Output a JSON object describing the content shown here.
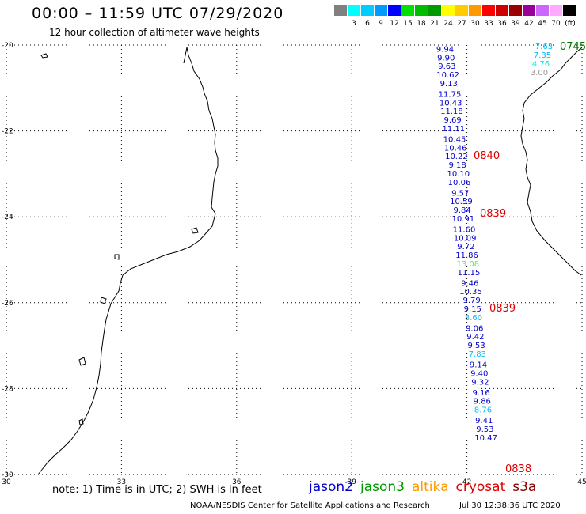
{
  "header": {
    "title": "00:00 – 11:59 UTC 07/29/2020",
    "subtitle": "12 hour collection of altimeter wave heights"
  },
  "color_scale": {
    "unit": "(ft)",
    "swatches": [
      {
        "color": "#808080",
        "label": ""
      },
      {
        "color": "#00ffff",
        "label": "3"
      },
      {
        "color": "#00ccff",
        "label": "6"
      },
      {
        "color": "#0099ff",
        "label": "9"
      },
      {
        "color": "#0000ff",
        "label": "12"
      },
      {
        "color": "#00e000",
        "label": "15"
      },
      {
        "color": "#00bb00",
        "label": "18"
      },
      {
        "color": "#009900",
        "label": "21"
      },
      {
        "color": "#ffff00",
        "label": "24"
      },
      {
        "color": "#ffcc00",
        "label": "27"
      },
      {
        "color": "#ff9900",
        "label": "30"
      },
      {
        "color": "#ff0000",
        "label": "33"
      },
      {
        "color": "#cc0000",
        "label": "36"
      },
      {
        "color": "#990000",
        "label": "39"
      },
      {
        "color": "#990099",
        "label": "42"
      },
      {
        "color": "#cc66ff",
        "label": "45"
      },
      {
        "color": "#ffaaff",
        "label": "70"
      },
      {
        "color": "#000000",
        "label": ""
      }
    ]
  },
  "axes": {
    "x_ticks": [
      "30",
      "33",
      "36",
      "39",
      "42",
      "45"
    ],
    "y_ticks": [
      "-20",
      "-22",
      "-24",
      "-26",
      "-28",
      "-30"
    ],
    "x_range": [
      30,
      45
    ],
    "y_range": [
      -30,
      -20
    ]
  },
  "observations": [
    {
      "lat": -20.1,
      "value": "9.94",
      "color": "#0000cc"
    },
    {
      "lat": -20.3,
      "value": "9.90",
      "color": "#0000cc"
    },
    {
      "lat": -20.5,
      "value": "9.63",
      "color": "#0000cc"
    },
    {
      "lat": -20.7,
      "value": "10.62",
      "color": "#0000cc"
    },
    {
      "lat": -20.9,
      "value": "9.13",
      "color": "#0000cc"
    },
    {
      "lat": -21.15,
      "value": "11.75",
      "color": "#0000cc"
    },
    {
      "lat": -21.35,
      "value": "10.43",
      "color": "#0000cc"
    },
    {
      "lat": -21.55,
      "value": "11.18",
      "color": "#0000cc"
    },
    {
      "lat": -21.75,
      "value": "9.69",
      "color": "#0000cc"
    },
    {
      "lat": -21.95,
      "value": "11.11",
      "color": "#0000cc"
    },
    {
      "lat": -22.2,
      "value": "10.45",
      "color": "#0000cc"
    },
    {
      "lat": -22.4,
      "value": "10.46",
      "color": "#0000cc"
    },
    {
      "lat": -22.6,
      "value": "10.22",
      "color": "#0000cc"
    },
    {
      "lat": -22.8,
      "value": "9.18",
      "color": "#0000cc"
    },
    {
      "lat": -23.0,
      "value": "10.10",
      "color": "#0000cc"
    },
    {
      "lat": -23.2,
      "value": "10.06",
      "color": "#0000cc"
    },
    {
      "lat": -23.45,
      "value": "9.57",
      "color": "#0000cc"
    },
    {
      "lat": -23.65,
      "value": "10.59",
      "color": "#0000cc"
    },
    {
      "lat": -23.85,
      "value": "9.84",
      "color": "#0000cc"
    },
    {
      "lat": -24.05,
      "value": "10.91",
      "color": "#0000cc"
    },
    {
      "lat": -24.3,
      "value": "11.60",
      "color": "#0000cc"
    },
    {
      "lat": -24.5,
      "value": "10.09",
      "color": "#0000cc"
    },
    {
      "lat": -24.7,
      "value": "9.72",
      "color": "#0000cc"
    },
    {
      "lat": -24.9,
      "value": "11.86",
      "color": "#0000cc"
    },
    {
      "lat": -25.1,
      "value": "13.08",
      "color": "#66dd66"
    },
    {
      "lat": -25.3,
      "value": "11.15",
      "color": "#0000cc"
    },
    {
      "lat": -25.55,
      "value": "9.46",
      "color": "#0000cc"
    },
    {
      "lat": -25.75,
      "value": "10.35",
      "color": "#0000cc"
    },
    {
      "lat": -25.95,
      "value": "9.79",
      "color": "#0000cc"
    },
    {
      "lat": -26.15,
      "value": "9.15",
      "color": "#0000cc"
    },
    {
      "lat": -26.35,
      "value": "8.60",
      "color": "#00bbff"
    },
    {
      "lat": -26.6,
      "value": "9.06",
      "color": "#0000cc"
    },
    {
      "lat": -26.8,
      "value": "9.42",
      "color": "#0000cc"
    },
    {
      "lat": -27.0,
      "value": "9.53",
      "color": "#0000cc"
    },
    {
      "lat": -27.2,
      "value": "7.83",
      "color": "#00bbff"
    },
    {
      "lat": -27.45,
      "value": "9.14",
      "color": "#0000cc"
    },
    {
      "lat": -27.65,
      "value": "9.40",
      "color": "#0000cc"
    },
    {
      "lat": -27.85,
      "value": "9.32",
      "color": "#0000cc"
    },
    {
      "lat": -28.1,
      "value": "9.16",
      "color": "#0000cc"
    },
    {
      "lat": -28.3,
      "value": "9.86",
      "color": "#0000cc"
    },
    {
      "lat": -28.5,
      "value": "8.76",
      "color": "#00bbff"
    },
    {
      "lat": -28.75,
      "value": "9.41",
      "color": "#0000cc"
    },
    {
      "lat": -28.95,
      "value": "9.53",
      "color": "#0000cc"
    },
    {
      "lat": -29.15,
      "value": "10.47",
      "color": "#0000cc"
    }
  ],
  "top_right_values": [
    {
      "value": "7.63",
      "color": "#00bbff"
    },
    {
      "value": "7.35",
      "color": "#00bbff"
    },
    {
      "value": "4.76",
      "color": "#00eeee"
    },
    {
      "value": "3.00",
      "color": "#999999"
    }
  ],
  "pass_times": [
    {
      "label": "0745",
      "color": "#007700"
    },
    {
      "label": "0840",
      "color": "#dd0000"
    },
    {
      "label": "0839",
      "color": "#dd0000"
    },
    {
      "label": "0839",
      "color": "#dd0000"
    },
    {
      "label": "0838",
      "color": "#dd0000"
    }
  ],
  "footer": {
    "note": "note: 1) Time is in UTC; 2) SWH is in feet",
    "legend": [
      {
        "name": "jason2",
        "color": "#0000cc"
      },
      {
        "name": "jason3",
        "color": "#009900"
      },
      {
        "name": "altika",
        "color": "#ff9900"
      },
      {
        "name": "cryosat",
        "color": "#dd0000"
      },
      {
        "name": "s3a",
        "color": "#880000"
      }
    ],
    "credit": "NOAA/NESDIS Center for Satellite Applications and Research",
    "timestamp": "Jul 30 12:38:36 UTC 2020"
  }
}
